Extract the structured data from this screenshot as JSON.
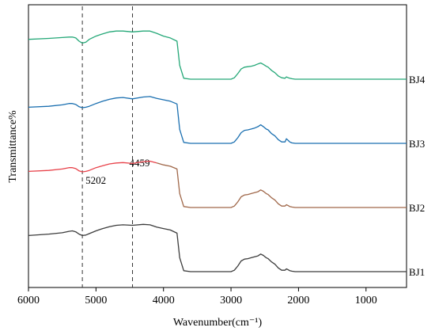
{
  "chart_data": {
    "type": "line",
    "title": "",
    "xlabel": "Wavenumber(cm⁻¹)",
    "ylabel": "Transmittance%",
    "xlim": [
      6000,
      400
    ],
    "x_reversed": true,
    "x_ticks": [
      6000,
      5000,
      4000,
      3000,
      2000,
      1000
    ],
    "y_ticks_shown": false,
    "grid": false,
    "annotations": [
      {
        "label": "5202",
        "x": 5202,
        "style": "dashed-vertical"
      },
      {
        "label": "4459",
        "x": 4459,
        "style": "dashed-vertical"
      }
    ],
    "x": [
      6000,
      5700,
      5500,
      5400,
      5350,
      5300,
      5250,
      5202,
      5150,
      5100,
      5000,
      4900,
      4800,
      4700,
      4600,
      4459,
      4300,
      4200,
      4100,
      4000,
      3900,
      3800,
      3760,
      3700,
      3600,
      3400,
      3200,
      3000,
      2950,
      2900,
      2850,
      2800,
      2750,
      2700,
      2650,
      2600,
      2560,
      2520,
      2480,
      2450,
      2400,
      2350,
      2300,
      2250,
      2200,
      2180,
      2150,
      2130,
      2100,
      2050,
      2000,
      1800,
      1500,
      1200,
      1000,
      800,
      600,
      400
    ],
    "series": [
      {
        "name": "BJ1",
        "color": "#3c3c3c",
        "values": [
          78,
          81,
          84,
          87,
          88,
          86,
          81,
          78,
          79,
          82,
          88,
          93,
          97,
          100,
          101,
          100,
          102,
          101,
          96,
          93,
          90,
          83,
          30,
          2,
          0,
          0,
          0,
          0,
          3,
          12,
          23,
          27,
          28,
          30,
          32,
          34,
          38,
          35,
          30,
          28,
          21,
          16,
          8,
          3,
          3,
          6,
          4,
          2,
          1,
          0,
          0,
          0,
          0,
          0,
          0,
          0,
          0,
          0
        ]
      },
      {
        "name": "BJ2",
        "color": "#a0684a",
        "color_early": "#e8424a",
        "split_x": 4100,
        "values": [
          78,
          80,
          83,
          86,
          86,
          84,
          79,
          77,
          78,
          80,
          86,
          90,
          94,
          96,
          97,
          95,
          99,
          100,
          96,
          92,
          89,
          83,
          30,
          2,
          0,
          0,
          0,
          0,
          3,
          12,
          23,
          27,
          28,
          30,
          32,
          34,
          38,
          35,
          30,
          28,
          21,
          16,
          8,
          3,
          3,
          6,
          4,
          2,
          1,
          0,
          0,
          0,
          0,
          0,
          0,
          0,
          0,
          0
        ]
      },
      {
        "name": "BJ3",
        "color": "#1a6fb0",
        "values": [
          78,
          80,
          83,
          86,
          86,
          84,
          79,
          77,
          78,
          80,
          86,
          91,
          95,
          98,
          99,
          96,
          100,
          101,
          97,
          94,
          91,
          85,
          30,
          2,
          0,
          0,
          0,
          0,
          3,
          12,
          23,
          28,
          29,
          31,
          33,
          36,
          40,
          36,
          31,
          29,
          21,
          16,
          8,
          3,
          3,
          10,
          6,
          3,
          1,
          0,
          0,
          0,
          0,
          0,
          0,
          0,
          0,
          0
        ]
      },
      {
        "name": "BJ4",
        "color": "#25a878",
        "values": [
          86,
          88,
          90,
          91,
          91,
          89,
          82,
          78,
          80,
          86,
          93,
          98,
          102,
          104,
          104,
          102,
          104,
          104,
          99,
          93,
          89,
          82,
          30,
          2,
          0,
          0,
          0,
          0,
          3,
          12,
          22,
          26,
          27,
          28,
          30,
          33,
          35,
          32,
          28,
          26,
          19,
          14,
          7,
          3,
          2,
          5,
          3,
          2,
          1,
          0,
          0,
          0,
          0,
          0,
          0,
          0,
          0,
          0
        ]
      }
    ]
  }
}
